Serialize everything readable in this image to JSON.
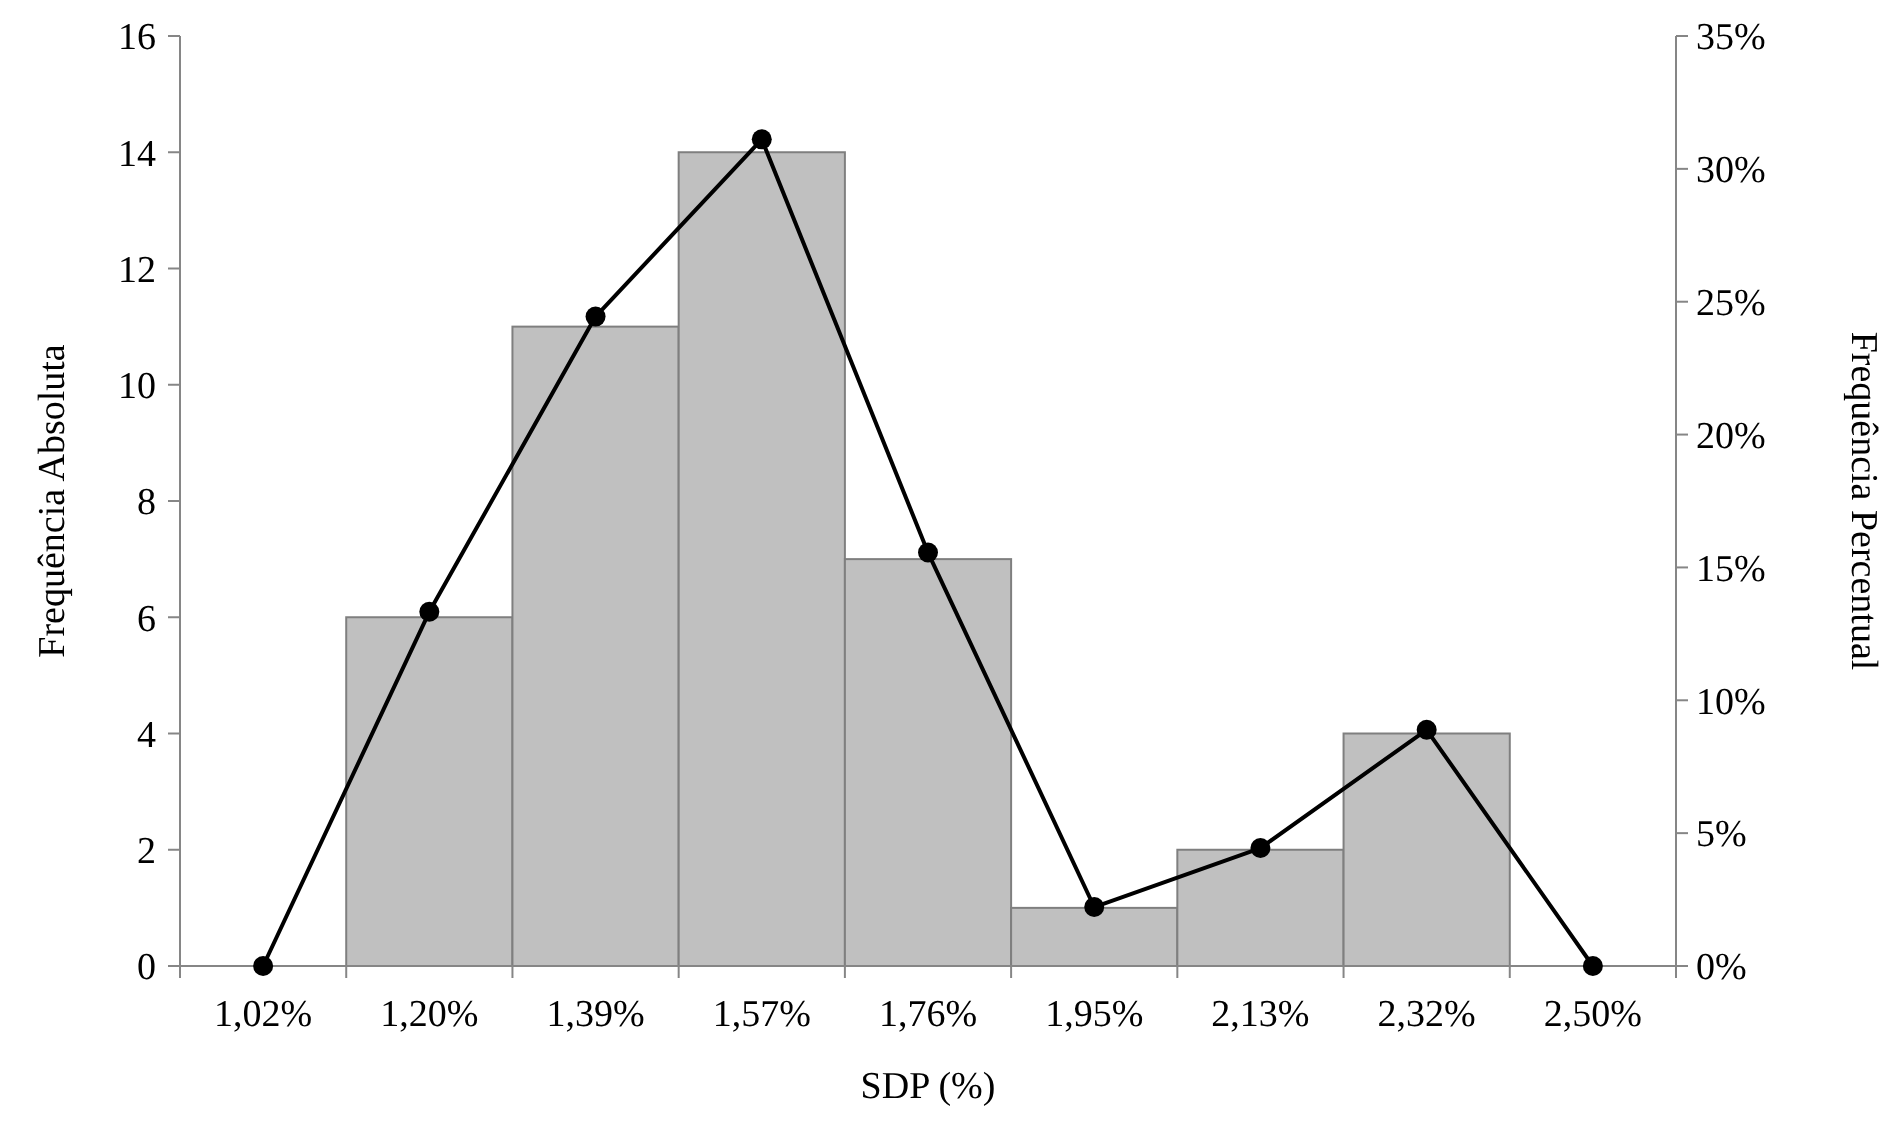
{
  "chart_data": {
    "type": "bar",
    "xlabel": "SDP (%)",
    "ylabel": "Frequência Absoluta",
    "y2label": "Frequência Percentual",
    "categories": [
      "1,02%",
      "1,20%",
      "1,39%",
      "1,57%",
      "1,76%",
      "1,95%",
      "2,13%",
      "2,32%",
      "2,50%"
    ],
    "series": [
      {
        "color": "#c0c0c0",
        "values": [
          null,
          6,
          11,
          14,
          7,
          1,
          2,
          4,
          null
        ]
      },
      {
        "type": "line",
        "axis": "y2",
        "color": "#000000",
        "marker": "circle",
        "values": [
          0,
          13.33,
          24.44,
          31.11,
          15.56,
          2.22,
          4.44,
          8.89,
          0
        ]
      }
    ],
    "ylim": [
      0,
      16
    ],
    "yticks": [
      0,
      2,
      4,
      6,
      8,
      10,
      12,
      14,
      16
    ],
    "y2lim": [
      0,
      35
    ],
    "y2ticks": [
      {
        "value": 0,
        "label": "0%"
      },
      {
        "value": 5,
        "label": "5%"
      },
      {
        "value": 10,
        "label": "10%"
      },
      {
        "value": 15,
        "label": "15%"
      },
      {
        "value": 20,
        "label": "20%"
      },
      {
        "value": 25,
        "label": "25%"
      },
      {
        "value": 30,
        "label": "30%"
      },
      {
        "value": 35,
        "label": "35%"
      }
    ],
    "grid": false
  }
}
